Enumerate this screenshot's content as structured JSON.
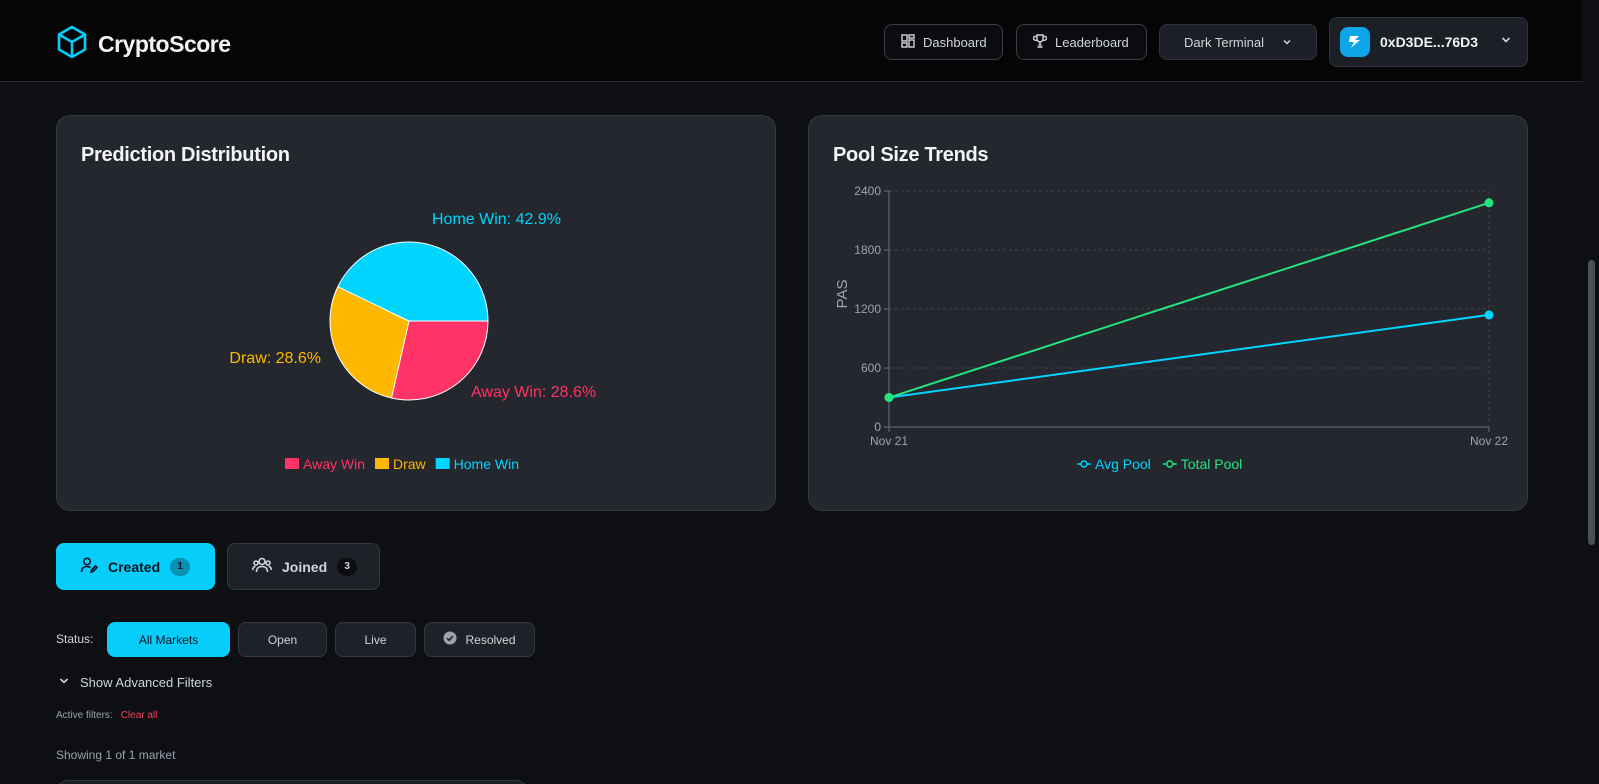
{
  "header": {
    "brand": "CryptoScore",
    "nav": [
      {
        "label": "Dashboard",
        "icon": "grid-icon"
      },
      {
        "label": "Leaderboard",
        "icon": "trophy-icon"
      }
    ],
    "theme_select": "Dark Terminal",
    "wallet_address": "0xD3DE...76D3"
  },
  "colors": {
    "accent": "#06cdfa",
    "away": "#ff3366",
    "draw": "#ffb800",
    "home": "#00d4ff",
    "total": "#22e57e"
  },
  "prediction_card": {
    "title": "Prediction Distribution"
  },
  "pool_card": {
    "title": "Pool Size Trends"
  },
  "chart_data": [
    {
      "type": "pie",
      "title": "Prediction Distribution",
      "labels": [
        "Away Win",
        "Draw",
        "Home Win"
      ],
      "values": [
        28.6,
        28.6,
        42.9
      ],
      "slice_labels": [
        "Away Win: 28.6%",
        "Draw: 28.6%",
        "Home Win: 42.9%"
      ],
      "legend": [
        "Away Win",
        "Draw",
        "Home Win"
      ],
      "legend_position": "bottom"
    },
    {
      "type": "line",
      "title": "Pool Size Trends",
      "categories": [
        "Nov 21",
        "Nov 22"
      ],
      "ylabel": "PAS",
      "ylim": [
        0,
        2400
      ],
      "yticks": [
        "2400",
        "1800",
        "1200",
        "600",
        "0"
      ],
      "series": [
        {
          "name": "Avg Pool",
          "values": [
            300,
            1140
          ]
        },
        {
          "name": "Total Pool",
          "values": [
            300,
            2280
          ]
        }
      ],
      "grid": true,
      "legend_position": "bottom"
    }
  ],
  "tabs": [
    {
      "label": "Created",
      "count": "1"
    },
    {
      "label": "Joined",
      "count": "3"
    }
  ],
  "filters": {
    "status_label": "Status:",
    "chips": [
      "All Markets",
      "Open",
      "Live",
      "Resolved"
    ],
    "advanced": "Show Advanced Filters",
    "active_label": "Active filters:",
    "clear_all": "Clear all",
    "showing": "Showing 1 of 1 market"
  }
}
